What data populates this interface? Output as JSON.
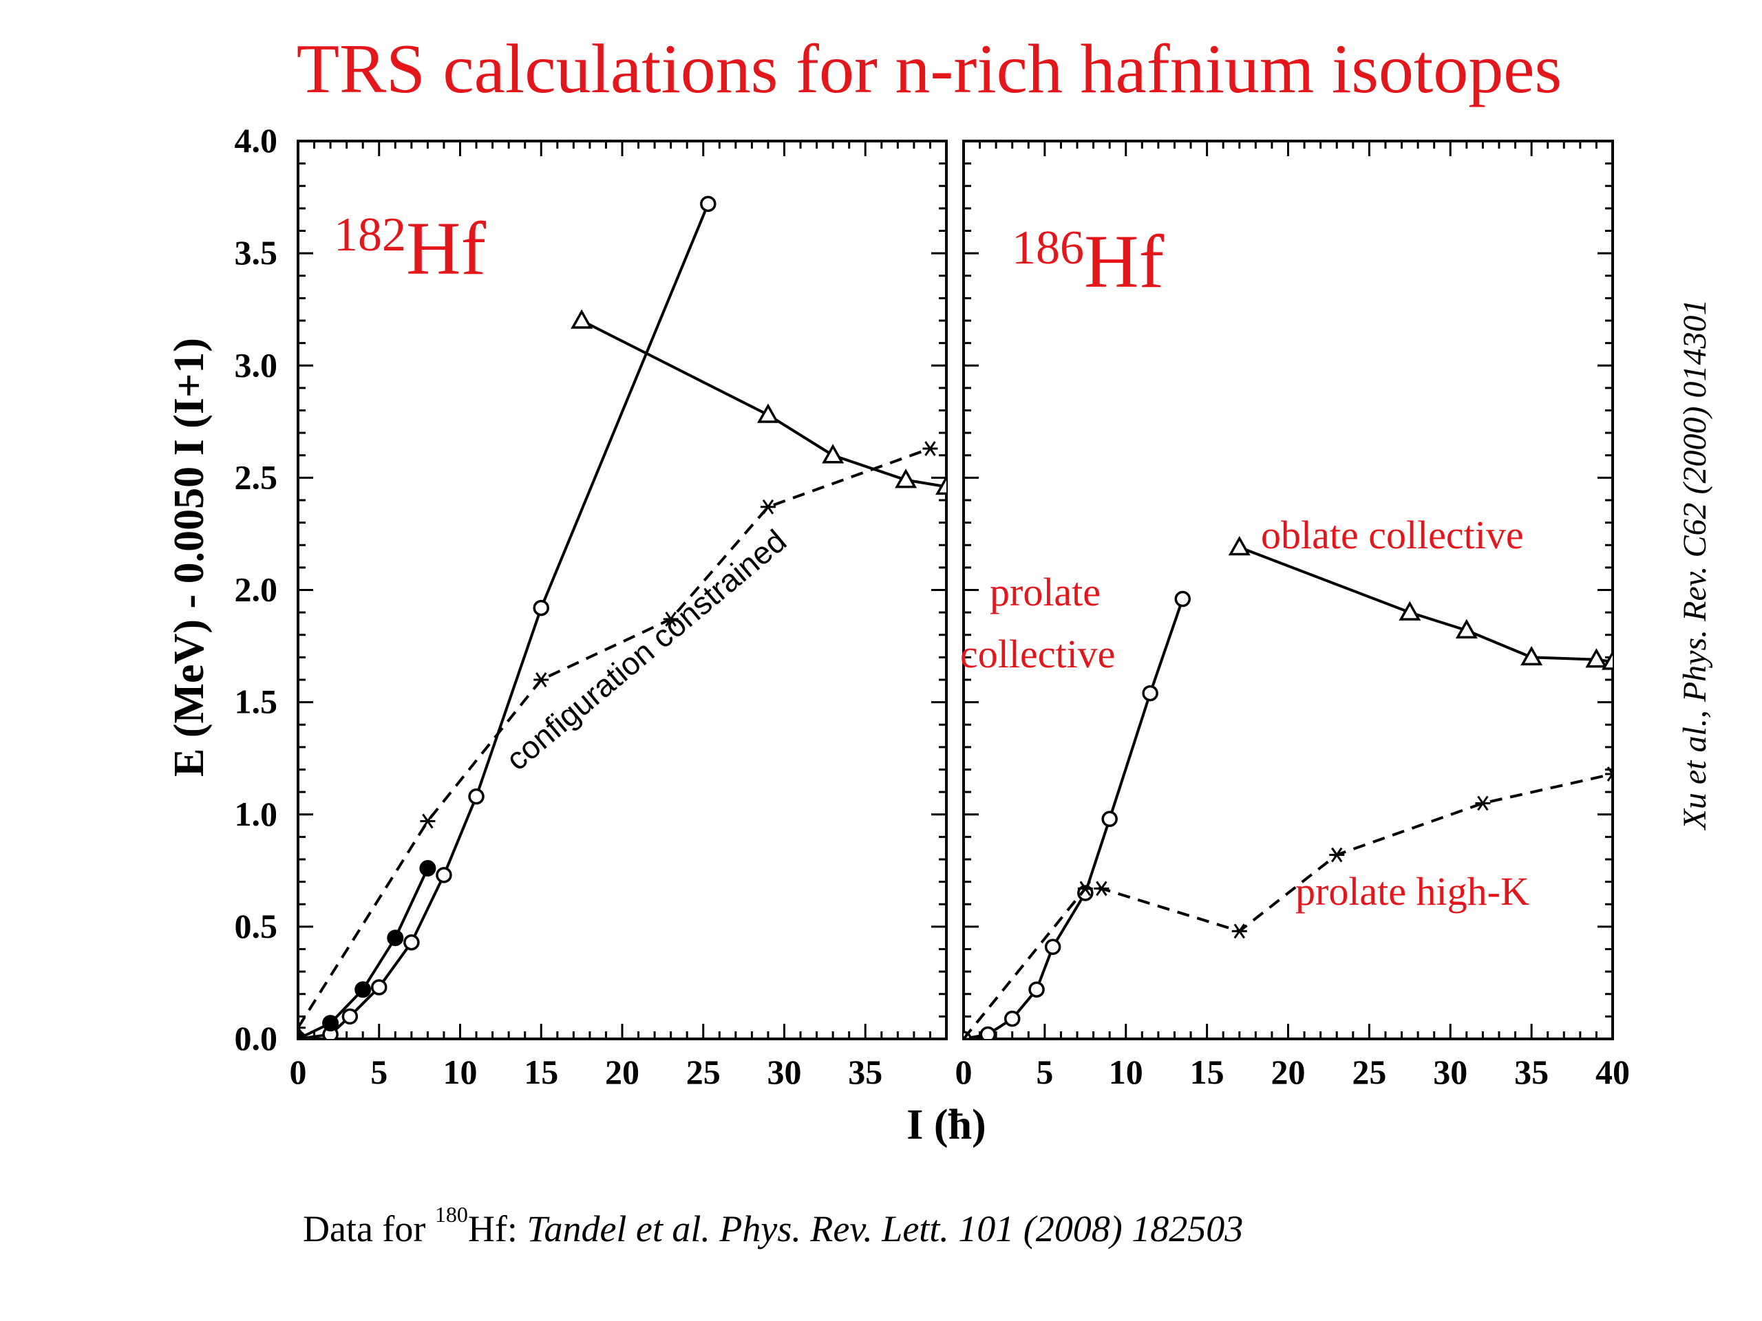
{
  "slide_title": "TRS calculations for n-rich hafnium isotopes",
  "citation_vertical": "Xu et al., Phys. Rev. C62 (2000) 014301",
  "footer": {
    "prefix": "Data for ",
    "mass": "180",
    "element": "Hf: ",
    "reference": "Tandel et al. Phys. Rev. Lett. 101 (2008) 182503"
  },
  "colors": {
    "annotation_red": "#e3171b",
    "data": "#000000"
  },
  "chart_data": [
    {
      "type": "line",
      "panel_label": {
        "mass": "182",
        "element": "Hf"
      },
      "xlabel": "I (ħ)",
      "ylabel": "E (MeV) - 0.0050 I (I+1)",
      "xlim": [
        0,
        40
      ],
      "ylim": [
        0,
        4.0
      ],
      "x_ticks": [
        "0",
        "5",
        "10",
        "15",
        "20",
        "25",
        "30",
        "35"
      ],
      "y_ticks": [
        "0.0",
        "0.5",
        "1.0",
        "1.5",
        "2.0",
        "2.5",
        "3.0",
        "3.5",
        "4.0"
      ],
      "annotations": [
        "configuration constrained"
      ],
      "series": [
        {
          "marker": "open-circle",
          "style": "solid",
          "x": [
            0,
            2,
            3.2,
            5,
            7,
            9,
            11,
            15,
            25.3
          ],
          "y": [
            0.0,
            0.02,
            0.1,
            0.23,
            0.43,
            0.73,
            1.08,
            1.92,
            3.72
          ]
        },
        {
          "marker": "filled-circle",
          "style": "solid",
          "x": [
            0,
            2,
            4,
            6,
            8
          ],
          "y": [
            0.0,
            0.07,
            0.22,
            0.45,
            0.76
          ]
        },
        {
          "marker": "open-triangle",
          "style": "solid",
          "x": [
            17.5,
            29,
            33,
            37.5,
            40
          ],
          "y": [
            3.2,
            2.78,
            2.6,
            2.49,
            2.46
          ]
        },
        {
          "marker": "asterisk",
          "style": "dashed",
          "x": [
            0,
            8,
            15,
            23,
            29,
            39
          ],
          "y": [
            0.05,
            0.97,
            1.6,
            1.87,
            2.37,
            2.63
          ]
        }
      ]
    },
    {
      "type": "line",
      "panel_label": {
        "mass": "186",
        "element": "Hf"
      },
      "xlabel": "I (ħ)",
      "xlim": [
        0,
        40
      ],
      "ylim": [
        0,
        4.0
      ],
      "x_ticks": [
        "0",
        "5",
        "10",
        "15",
        "20",
        "25",
        "30",
        "35",
        "40"
      ],
      "annotations": [
        "prolate",
        "collective",
        "oblate collective",
        "prolate high-K"
      ],
      "series": [
        {
          "marker": "open-circle",
          "style": "solid",
          "x": [
            0,
            1.5,
            3,
            4.5,
            5.5,
            7.5,
            9,
            11.5,
            13.5
          ],
          "y": [
            0.0,
            0.02,
            0.09,
            0.22,
            0.41,
            0.65,
            0.98,
            1.54,
            1.96
          ]
        },
        {
          "marker": "open-triangle",
          "style": "solid",
          "x": [
            17,
            27.5,
            31,
            35,
            39,
            40
          ],
          "y": [
            2.19,
            1.9,
            1.82,
            1.7,
            1.69,
            1.68
          ]
        },
        {
          "marker": "asterisk",
          "style": "dashed",
          "x": [
            0,
            7.5,
            8.5,
            17,
            23,
            32,
            40
          ],
          "y": [
            0.0,
            0.67,
            0.67,
            0.48,
            0.82,
            1.05,
            1.18
          ]
        }
      ]
    }
  ]
}
